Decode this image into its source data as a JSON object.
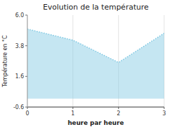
{
  "chart_data": {
    "type": "area",
    "title": "Evolution de la température",
    "x_label": "heure par heure",
    "y_label": "Température en °C",
    "x": [
      0,
      1,
      2,
      3
    ],
    "values": [
      5.0,
      4.2,
      2.6,
      4.7
    ],
    "baseline": 0,
    "xlim": [
      0,
      3
    ],
    "ylim": [
      -0.6,
      6.0
    ],
    "xticks": [
      0,
      1,
      2,
      3
    ],
    "yticks": [
      -0.6,
      1.6,
      3.8,
      {
        "value": 6.0,
        "label": "6.0"
      }
    ],
    "color": "#7ec8e3",
    "line_style": "dotted",
    "grid": "x"
  }
}
